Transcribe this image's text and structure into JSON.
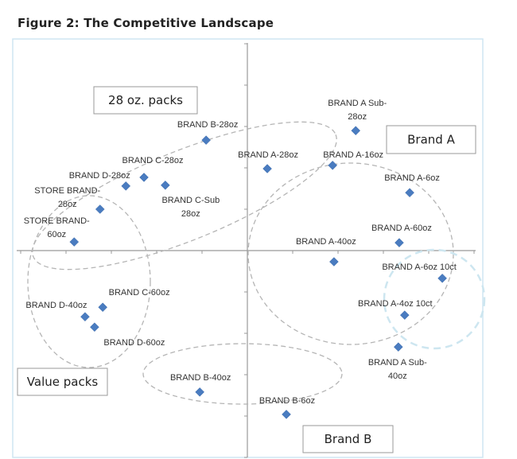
{
  "chart_data": {
    "type": "scatter",
    "title": "Figure 2: The Competitive Landscape",
    "xlabel": "",
    "ylabel": "",
    "xlim": [
      -5,
      5
    ],
    "ylim": [
      -5,
      5
    ],
    "grid": false,
    "marker_color": "#4a7cc0",
    "points": [
      {
        "label": [
          "BRAND B-28oz"
        ],
        "x": -0.91,
        "y": 2.67
      },
      {
        "label": [
          "BRAND C-28oz"
        ],
        "x": -2.28,
        "y": 1.77
      },
      {
        "label": [
          "BRAND C-Sub",
          "28oz"
        ],
        "x": -1.81,
        "y": 1.58
      },
      {
        "label": [
          "BRAND D-28oz"
        ],
        "x": -2.68,
        "y": 1.56
      },
      {
        "label": [
          "STORE BRAND-",
          "28oz"
        ],
        "x": -3.25,
        "y": 1.0
      },
      {
        "label": [
          "STORE BRAND-",
          "60oz"
        ],
        "x": -3.82,
        "y": 0.21
      },
      {
        "label": [
          "BRAND A-28oz"
        ],
        "x": 0.44,
        "y": 1.98
      },
      {
        "label": [
          "BRAND A-16oz"
        ],
        "x": 1.88,
        "y": 2.06
      },
      {
        "label": [
          "BRAND A Sub-",
          "28oz"
        ],
        "x": 2.39,
        "y": 2.9
      },
      {
        "label": [
          "BRAND A-6oz"
        ],
        "x": 3.58,
        "y": 1.4
      },
      {
        "label": [
          "BRAND A-60oz"
        ],
        "x": 3.35,
        "y": 0.19
      },
      {
        "label": [
          "BRAND A-40oz"
        ],
        "x": 1.91,
        "y": -0.27
      },
      {
        "label": [
          "BRAND A-6oz 10ct"
        ],
        "x": 4.3,
        "y": -0.67
      },
      {
        "label": [
          "BRAND A-4oz 10ct"
        ],
        "x": 3.47,
        "y": -1.56
      },
      {
        "label": [
          "BRAND A Sub-",
          "40oz"
        ],
        "x": 3.33,
        "y": -2.33
      },
      {
        "label": [
          "BRAND C-60oz"
        ],
        "x": -3.19,
        "y": -1.37
      },
      {
        "label": [
          "BRAND D-40oz"
        ],
        "x": -3.58,
        "y": -1.6
      },
      {
        "label": [
          "BRAND D-60oz"
        ],
        "x": -3.37,
        "y": -1.85
      },
      {
        "label": [
          "BRAND B-40oz"
        ],
        "x": -1.05,
        "y": -3.42
      },
      {
        "label": [
          "BRAND B-6oz"
        ],
        "x": 0.86,
        "y": -3.96
      }
    ],
    "annotations": [
      "28 oz. packs",
      "Brand A",
      "Value packs",
      "Brand B"
    ]
  }
}
